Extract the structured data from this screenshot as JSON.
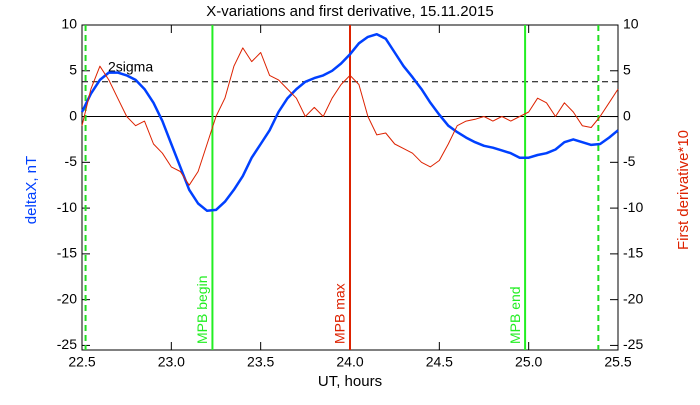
{
  "chart_data": {
    "type": "line",
    "title": "X-variations and first derivative, 15.11.2015",
    "xlabel": "UT, hours",
    "ylabel": "deltaX, nT",
    "y2label": "First derivative*10",
    "x": [
      22.5,
      22.55,
      22.6,
      22.65,
      22.7,
      22.75,
      22.8,
      22.85,
      22.9,
      22.95,
      23.0,
      23.05,
      23.1,
      23.15,
      23.2,
      23.25,
      23.3,
      23.35,
      23.4,
      23.45,
      23.5,
      23.55,
      23.6,
      23.65,
      23.7,
      23.75,
      23.8,
      23.85,
      23.9,
      23.95,
      24.0,
      24.05,
      24.1,
      24.15,
      24.2,
      24.25,
      24.3,
      24.35,
      24.4,
      24.45,
      24.5,
      24.55,
      24.6,
      24.65,
      24.7,
      24.75,
      24.8,
      24.85,
      24.9,
      24.95,
      25.0,
      25.05,
      25.1,
      25.15,
      25.2,
      25.25,
      25.3,
      25.35,
      25.4,
      25.45,
      25.5
    ],
    "series": [
      {
        "color": "#0040ff",
        "values": [
          0.5,
          2.5,
          4,
          4.8,
          4.8,
          4.5,
          4,
          3,
          1.5,
          -0.5,
          -3,
          -5.5,
          -8,
          -9.5,
          -10.3,
          -10.2,
          -9.3,
          -8,
          -6.5,
          -4.5,
          -3,
          -1.5,
          0.5,
          2,
          3,
          3.8,
          4.2,
          4.5,
          5,
          5.8,
          6.8,
          8,
          8.7,
          9,
          8.5,
          7,
          5.5,
          4.3,
          3,
          1.5,
          0.2,
          -1,
          -1.7,
          -2.3,
          -2.8,
          -3.2,
          -3.4,
          -3.7,
          -4,
          -4.5,
          -4.5,
          -4.2,
          -4,
          -3.6,
          -2.8,
          -2.5,
          -2.8,
          -3.1,
          -3.0,
          -2.3,
          -1.5
        ]
      },
      {
        "color": "#dd2200",
        "axis": "y2",
        "values": [
          -1,
          3,
          5.5,
          4,
          2,
          0,
          -1,
          -0.5,
          -3,
          -4,
          -5.5,
          -6,
          -7.5,
          -6,
          -3,
          0,
          2,
          5.5,
          7.5,
          6,
          7,
          4.5,
          4,
          3,
          2,
          0,
          1,
          0,
          2,
          3.5,
          4.5,
          3.5,
          0,
          -2,
          -1.8,
          -3,
          -3.5,
          -4,
          -5,
          -5.5,
          -4.8,
          -3,
          -1,
          -0.5,
          -0.3,
          0,
          -0.5,
          0,
          -0.5,
          0,
          0.5,
          2,
          1.5,
          0,
          1.5,
          0.5,
          -1,
          -1.2,
          0,
          1.5,
          3
        ]
      }
    ],
    "xlim": [
      22.5,
      25.5
    ],
    "xticks": [
      22.5,
      {
        "value": 23,
        "label": "23.0"
      },
      23.5,
      {
        "value": 24,
        "label": "24.0"
      },
      24.5,
      {
        "value": 25,
        "label": "25.0"
      },
      25.5
    ],
    "ylim": [
      -25.5,
      10
    ],
    "yticks": [
      10,
      5,
      0,
      -5,
      -10,
      -15,
      -20,
      -25
    ],
    "y2lim": [
      -25.5,
      10
    ],
    "y2ticks": [
      10,
      5,
      0,
      -5,
      -10,
      -15,
      -20,
      -25
    ],
    "hlines": [
      {
        "y": 0,
        "color": "#000000"
      },
      {
        "y": 3.8,
        "label": "2sigma",
        "color": "#000000",
        "dashed": true
      }
    ],
    "vlines": [
      {
        "x": 22.52,
        "color": "#22dd22",
        "dashed": true
      },
      {
        "x": 23.23,
        "label": "MPB begin",
        "color": "#22ee22"
      },
      {
        "x": 24.0,
        "label": "MPB max",
        "color": "#dd2200"
      },
      {
        "x": 24.98,
        "label": "MPB end",
        "color": "#22ee22"
      },
      {
        "x": 25.39,
        "color": "#22dd22",
        "dashed": true
      }
    ]
  }
}
